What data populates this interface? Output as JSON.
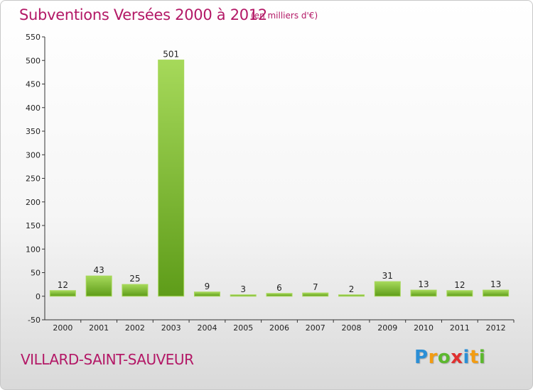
{
  "chart_data": {
    "type": "bar",
    "title": "Subventions Versées 2000 à 2012",
    "unit_note": "(en milliers d'€)",
    "categories": [
      "2000",
      "2001",
      "2002",
      "2003",
      "2004",
      "2005",
      "2006",
      "2007",
      "2008",
      "2009",
      "2010",
      "2011",
      "2012"
    ],
    "values": [
      12,
      43,
      25,
      501,
      9,
      3,
      6,
      7,
      2,
      31,
      13,
      12,
      13
    ],
    "ylim": [
      -50,
      550
    ],
    "yticks": [
      -50,
      0,
      50,
      100,
      150,
      200,
      250,
      300,
      350,
      400,
      450,
      500,
      550
    ],
    "grid": false,
    "bar_color": "#7cb82f",
    "bar_highlight": "#a8d85a",
    "bar_shadow": "#5c9a18"
  },
  "footer": {
    "location": "VILLARD-SAINT-SAUVEUR",
    "brand_letters": [
      {
        "ch": "P",
        "color": "#2b8fd6"
      },
      {
        "ch": "r",
        "color": "#f39c12"
      },
      {
        "ch": "o",
        "color": "#5cb82e"
      },
      {
        "ch": "x",
        "color": "#e03030"
      },
      {
        "ch": "i",
        "color": "#2b8fd6"
      },
      {
        "ch": "t",
        "color": "#f39c12"
      },
      {
        "ch": "i",
        "color": "#5cb82e"
      }
    ]
  }
}
